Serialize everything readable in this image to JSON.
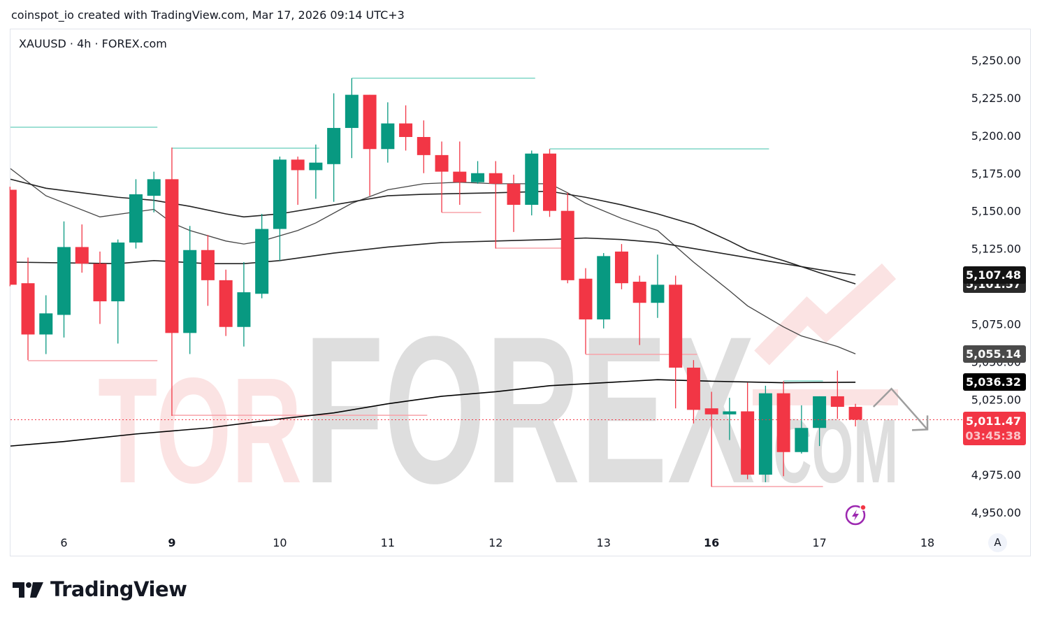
{
  "header": {
    "credit": "coinspot_io created with TradingView.com, Mar 17, 2026 09:14 UTC+3",
    "symbol": "XAUUSD · 4h · FOREX.com"
  },
  "footer": {
    "logo_text": "TradingView"
  },
  "watermark": {
    "part1": "TOR",
    "part2": "FOREX",
    "part3": ".COM"
  },
  "colors": {
    "up": "#089981",
    "down": "#f23645",
    "ma": "#000000",
    "resistance": "#7fd6c6",
    "support": "#f7a3aa",
    "watermark_pink": "#fbe3e3",
    "watermark_gray": "#dedede"
  },
  "auto_scale_label": "A",
  "chart_data": {
    "type": "candlestick",
    "symbol": "XAUUSD",
    "interval": "4h",
    "source": "FOREX.com",
    "ylim": [
      4925,
      5275
    ],
    "y_ticks": [
      4950,
      4975,
      5000,
      5025,
      5050,
      5075,
      5100,
      5125,
      5150,
      5175,
      5200,
      5225,
      5250
    ],
    "y_tick_labels": [
      "4,950.00",
      "4,975.00",
      "5,000.00",
      "5,025.00",
      "5,050.00",
      "5,075.00",
      "5,100.00",
      "5,125.00",
      "5,150.00",
      "5,175.00",
      "5,200.00",
      "5,225.00",
      "5,250.00"
    ],
    "x_ticks": [
      {
        "index": 3,
        "label": "6",
        "bold": false
      },
      {
        "index": 9,
        "label": "9",
        "bold": true
      },
      {
        "index": 15,
        "label": "10",
        "bold": false
      },
      {
        "index": 21,
        "label": "11",
        "bold": false
      },
      {
        "index": 27,
        "label": "12",
        "bold": false
      },
      {
        "index": 33,
        "label": "13",
        "bold": false
      },
      {
        "index": 39,
        "label": "16",
        "bold": true
      },
      {
        "index": 45,
        "label": "17",
        "bold": false
      },
      {
        "index": 51,
        "label": "18",
        "bold": false
      }
    ],
    "candles_ohlc": [
      [
        5164,
        5166,
        5100,
        5101
      ],
      [
        5102,
        5119,
        5051,
        5068
      ],
      [
        5068,
        5094,
        5055,
        5082
      ],
      [
        5081,
        5143,
        5066,
        5126
      ],
      [
        5126,
        5141,
        5109,
        5115
      ],
      [
        5115,
        5123,
        5075,
        5090
      ],
      [
        5090,
        5131,
        5062,
        5129
      ],
      [
        5129,
        5171,
        5125,
        5161
      ],
      [
        5160,
        5176,
        5149,
        5171
      ],
      [
        5171,
        5192,
        5014,
        5069
      ],
      [
        5069,
        5140,
        5055,
        5124
      ],
      [
        5124,
        5134,
        5087,
        5104
      ],
      [
        5104,
        5111,
        5067,
        5073
      ],
      [
        5073,
        5116,
        5060,
        5096
      ],
      [
        5095,
        5148,
        5092,
        5138
      ],
      [
        5138,
        5186,
        5117,
        5184
      ],
      [
        5184,
        5186,
        5154,
        5177
      ],
      [
        5177,
        5194,
        5158,
        5182
      ],
      [
        5181,
        5228,
        5156,
        5205
      ],
      [
        5205,
        5238,
        5185,
        5227
      ],
      [
        5227,
        5227,
        5160,
        5191
      ],
      [
        5191,
        5222,
        5182,
        5208
      ],
      [
        5208,
        5220,
        5190,
        5199
      ],
      [
        5199,
        5210,
        5175,
        5187
      ],
      [
        5187,
        5196,
        5149,
        5176
      ],
      [
        5176,
        5196,
        5154,
        5169
      ],
      [
        5169,
        5183,
        5168,
        5175
      ],
      [
        5175,
        5183,
        5125,
        5168
      ],
      [
        5168,
        5174,
        5136,
        5154
      ],
      [
        5154,
        5190,
        5147,
        5188
      ],
      [
        5188,
        5191,
        5146,
        5150
      ],
      [
        5150,
        5162,
        5102,
        5104
      ],
      [
        5105,
        5112,
        5055,
        5078
      ],
      [
        5078,
        5122,
        5072,
        5120
      ],
      [
        5123,
        5128,
        5098,
        5102
      ],
      [
        5103,
        5107,
        5061,
        5089
      ],
      [
        5089,
        5121,
        5079,
        5101
      ],
      [
        5101,
        5107,
        5019,
        5046
      ],
      [
        5046,
        5051,
        5009,
        5018
      ],
      [
        5019,
        5030,
        4967,
        5015
      ],
      [
        5015,
        5026,
        4998,
        5017
      ],
      [
        5017,
        5036,
        4972,
        4975
      ],
      [
        4975,
        5034,
        4970,
        5029
      ],
      [
        5029,
        5037,
        4974,
        4990
      ],
      [
        4990,
        5021,
        4989,
        5006
      ],
      [
        5006,
        5027,
        4994,
        5027
      ],
      [
        5027,
        5044,
        5012,
        5020
      ],
      [
        5020,
        5022,
        5007,
        5011.47
      ]
    ],
    "moving_averages": [
      {
        "last_value": 5055.14,
        "label": "5,055.14",
        "label_color": "#4a4a4a",
        "points": [
          [
            0,
            5178
          ],
          [
            2,
            5160
          ],
          [
            5,
            5146
          ],
          [
            8,
            5151
          ],
          [
            9,
            5142
          ],
          [
            10,
            5137
          ],
          [
            12,
            5130
          ],
          [
            13,
            5128
          ],
          [
            14,
            5130
          ],
          [
            16,
            5137
          ],
          [
            17,
            5142
          ],
          [
            19,
            5155
          ],
          [
            21,
            5164
          ],
          [
            23,
            5168
          ],
          [
            25,
            5169
          ],
          [
            27,
            5168
          ],
          [
            30,
            5168
          ],
          [
            31,
            5162
          ],
          [
            32,
            5155
          ],
          [
            34,
            5145
          ],
          [
            36,
            5137
          ],
          [
            38,
            5116
          ],
          [
            40,
            5097
          ],
          [
            41,
            5087
          ],
          [
            43,
            5073
          ],
          [
            44,
            5067
          ],
          [
            46,
            5060
          ],
          [
            47,
            5055.14
          ]
        ]
      },
      {
        "last_value": 5101.57,
        "label": "5,101.57",
        "label_color": "#2a2a2a",
        "points": [
          [
            0,
            5171
          ],
          [
            2,
            5165
          ],
          [
            6,
            5159
          ],
          [
            8,
            5157
          ],
          [
            10,
            5153
          ],
          [
            12,
            5148
          ],
          [
            13,
            5146
          ],
          [
            15,
            5148
          ],
          [
            18,
            5154
          ],
          [
            21,
            5160
          ],
          [
            23,
            5161
          ],
          [
            27,
            5162
          ],
          [
            30,
            5163
          ],
          [
            32,
            5159
          ],
          [
            34,
            5154
          ],
          [
            36,
            5148
          ],
          [
            38,
            5141
          ],
          [
            40,
            5130
          ],
          [
            41,
            5124
          ],
          [
            43,
            5117
          ],
          [
            45,
            5109
          ],
          [
            47,
            5101.57
          ]
        ]
      },
      {
        "last_value": 5107.48,
        "label": "5,107.48",
        "label_color": "#131313",
        "points": [
          [
            0,
            5116
          ],
          [
            6,
            5115
          ],
          [
            8,
            5117
          ],
          [
            11,
            5115
          ],
          [
            13,
            5115
          ],
          [
            15,
            5117
          ],
          [
            18,
            5122
          ],
          [
            21,
            5126
          ],
          [
            24,
            5129
          ],
          [
            27,
            5130
          ],
          [
            30,
            5131
          ],
          [
            32,
            5132
          ],
          [
            34,
            5131
          ],
          [
            36,
            5129
          ],
          [
            38,
            5125
          ],
          [
            41,
            5119
          ],
          [
            43,
            5115
          ],
          [
            45,
            5111
          ],
          [
            47,
            5107.48
          ]
        ]
      },
      {
        "last_value": 5036.32,
        "label": "5,036.32",
        "label_color": "#000000",
        "points": [
          [
            0,
            4994
          ],
          [
            3,
            4997
          ],
          [
            7,
            5002
          ],
          [
            11,
            5006
          ],
          [
            15,
            5012
          ],
          [
            18,
            5016
          ],
          [
            21,
            5022
          ],
          [
            24,
            5027
          ],
          [
            27,
            5030
          ],
          [
            30,
            5034
          ],
          [
            33,
            5036
          ],
          [
            36,
            5038
          ],
          [
            39,
            5037
          ],
          [
            43,
            5036
          ],
          [
            47,
            5036.32
          ]
        ]
      }
    ],
    "levels": [
      {
        "kind": "resistance",
        "price": 5205.5,
        "from": 0,
        "to": 8
      },
      {
        "kind": "resistance",
        "price": 5191.6,
        "from": 9,
        "to": 17
      },
      {
        "kind": "resistance",
        "price": 5238,
        "from": 19,
        "to": 29
      },
      {
        "kind": "resistance",
        "price": 5191.1,
        "from": 30,
        "to": 42
      },
      {
        "kind": "resistance",
        "price": 5037.2,
        "from": 43,
        "to": 45
      },
      {
        "kind": "support",
        "price": 5050.6,
        "from": 1,
        "to": 8
      },
      {
        "kind": "support",
        "price": 5014.4,
        "from": 9,
        "to": 23
      },
      {
        "kind": "support",
        "price": 5148.9,
        "from": 24,
        "to": 26
      },
      {
        "kind": "support",
        "price": 5125.3,
        "from": 27,
        "to": 31
      },
      {
        "kind": "support",
        "price": 5054.8,
        "from": 32,
        "to": 38
      },
      {
        "kind": "support",
        "price": 4967.1,
        "from": 39,
        "to": 45
      }
    ],
    "last_price": 5011.47,
    "last_price_label": "5,011.47",
    "countdown": "03:45:38",
    "projection_arrow": [
      [
        48,
        5020
      ],
      [
        49,
        5032
      ],
      [
        51,
        5005
      ]
    ]
  }
}
